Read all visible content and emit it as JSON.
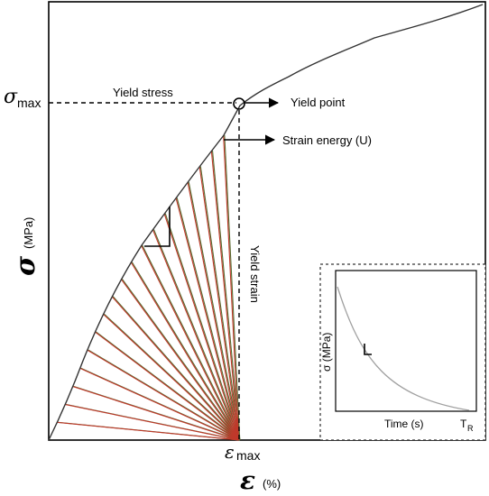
{
  "labels": {
    "sigma_max_symbol": "σ",
    "sigma_max_sub": "max",
    "yield_stress": "Yield stress",
    "yield_point": "Yield point",
    "strain_energy": "Strain energy (U)",
    "yield_strain": "Yield strain",
    "y_axis_symbol": "σ",
    "y_axis_unit": "(MPa)",
    "eps_max_symbol": "ε",
    "eps_max_sub": "max",
    "x_axis_symbol": "ε",
    "x_axis_unit": "(%)"
  },
  "inset": {
    "y_axis_label": "σ (MPa)",
    "x_axis_label": "Time  (s)",
    "t_r_symbol": "T",
    "t_r_sub": "R"
  },
  "colors": {
    "curve": "#333333",
    "hatch_red": "#c0392b",
    "hatch_green": "#556b2f",
    "inset_curve": "#a0a0a0"
  }
}
